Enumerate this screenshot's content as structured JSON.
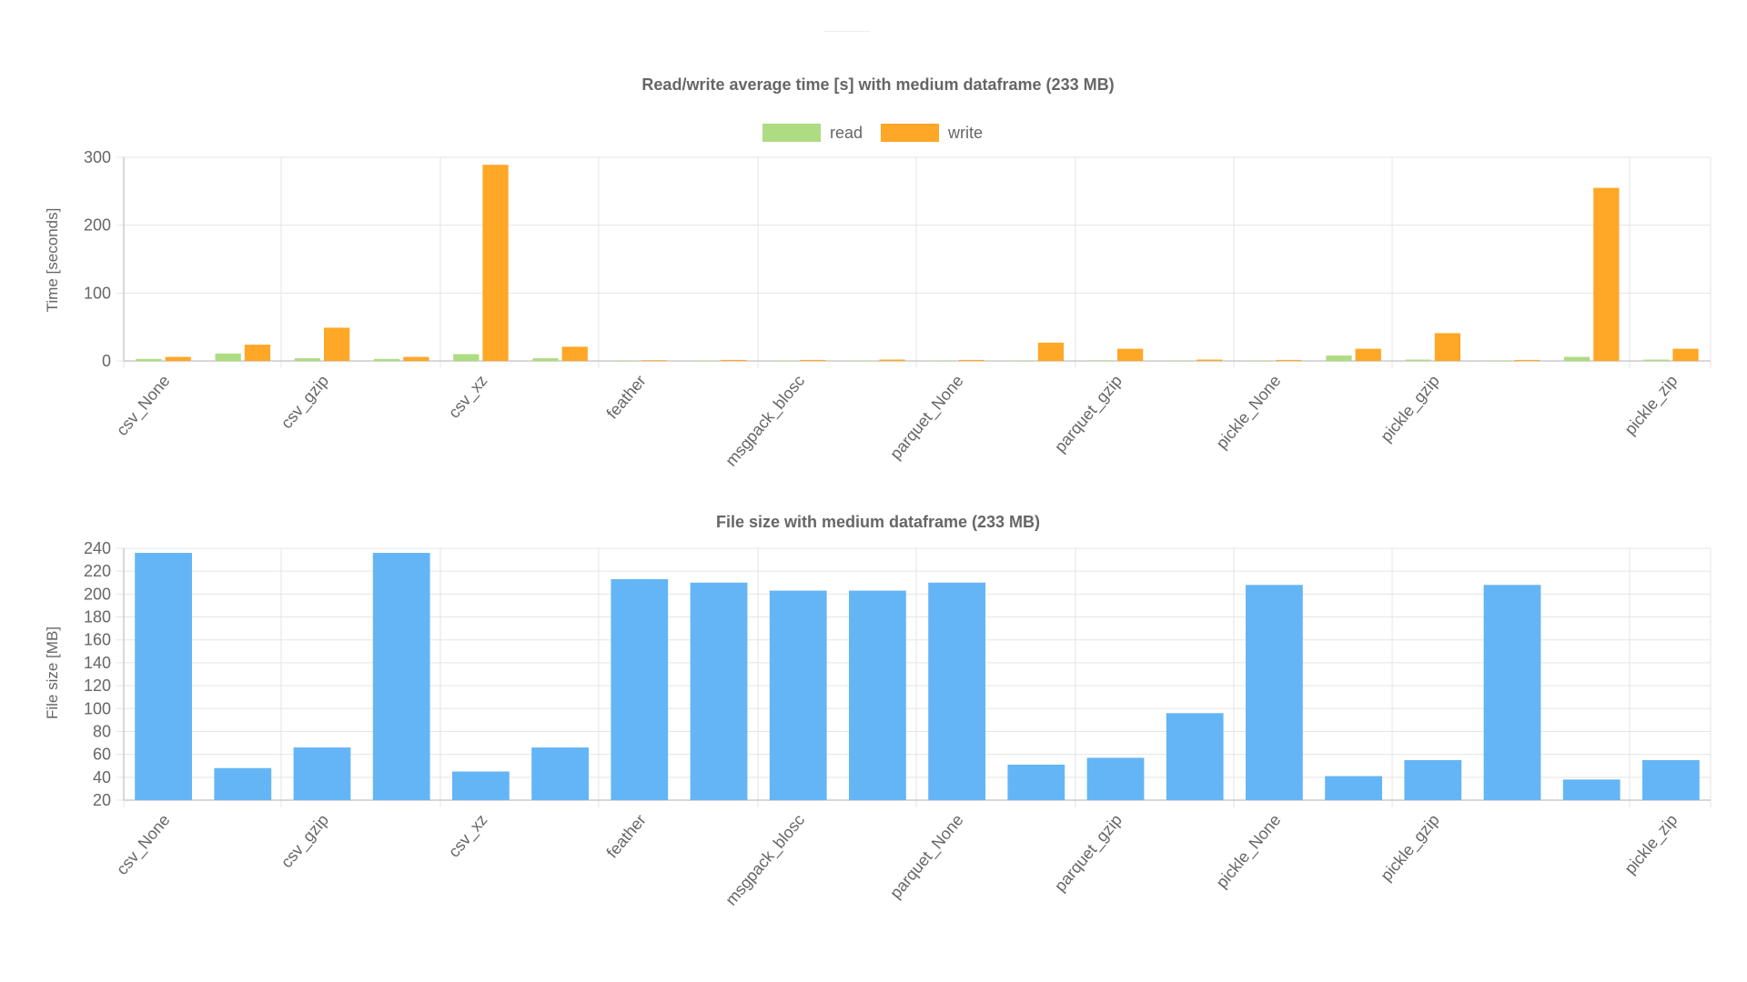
{
  "chart_data": [
    {
      "type": "bar",
      "title": "Read/write average time [s] with medium dataframe (233 MB)",
      "xlabel": "",
      "ylabel": "Time [seconds]",
      "ylim": [
        0,
        300
      ],
      "yticks": [
        0,
        100,
        200,
        300
      ],
      "grid": true,
      "legend": "top-center",
      "categories": [
        "csv_None",
        "",
        "csv_gzip",
        "",
        "csv_xz",
        "",
        "feather",
        "",
        "msgpack_blosc",
        "",
        "parquet_None",
        "",
        "parquet_gzip",
        "",
        "pickle_None",
        "",
        "pickle_gzip",
        "",
        "",
        "pickle_zip"
      ],
      "series": [
        {
          "name": "read",
          "color": "#addc82",
          "values": [
            3,
            11,
            4,
            3,
            10,
            4,
            0.5,
            0.3,
            0.3,
            0.3,
            0.5,
            0.5,
            0.8,
            0.5,
            0.5,
            8,
            2,
            0.5,
            6,
            2
          ]
        },
        {
          "name": "write",
          "color": "#ffa726",
          "values": [
            6,
            24,
            49,
            6,
            289,
            21,
            1,
            1.5,
            1.5,
            2,
            1.5,
            27,
            18,
            2,
            1.5,
            18,
            41,
            1.5,
            255,
            18
          ]
        }
      ]
    },
    {
      "type": "bar",
      "title": "File size with medium dataframe (233 MB)",
      "xlabel": "",
      "ylabel": "File size [MB]",
      "ylim": [
        20,
        240
      ],
      "yticks": [
        20,
        40,
        60,
        80,
        100,
        120,
        140,
        160,
        180,
        200,
        220,
        240
      ],
      "grid": true,
      "categories": [
        "csv_None",
        "",
        "csv_gzip",
        "",
        "csv_xz",
        "",
        "feather",
        "",
        "msgpack_blosc",
        "",
        "parquet_None",
        "",
        "parquet_gzip",
        "",
        "pickle_None",
        "",
        "pickle_gzip",
        "",
        "",
        "pickle_zip"
      ],
      "series": [
        {
          "color": "#64b5f6",
          "values": [
            236,
            48,
            66,
            236,
            45,
            66,
            213,
            210,
            203,
            203,
            210,
            51,
            57,
            96,
            208,
            41,
            55,
            208,
            38,
            55
          ]
        }
      ]
    }
  ]
}
